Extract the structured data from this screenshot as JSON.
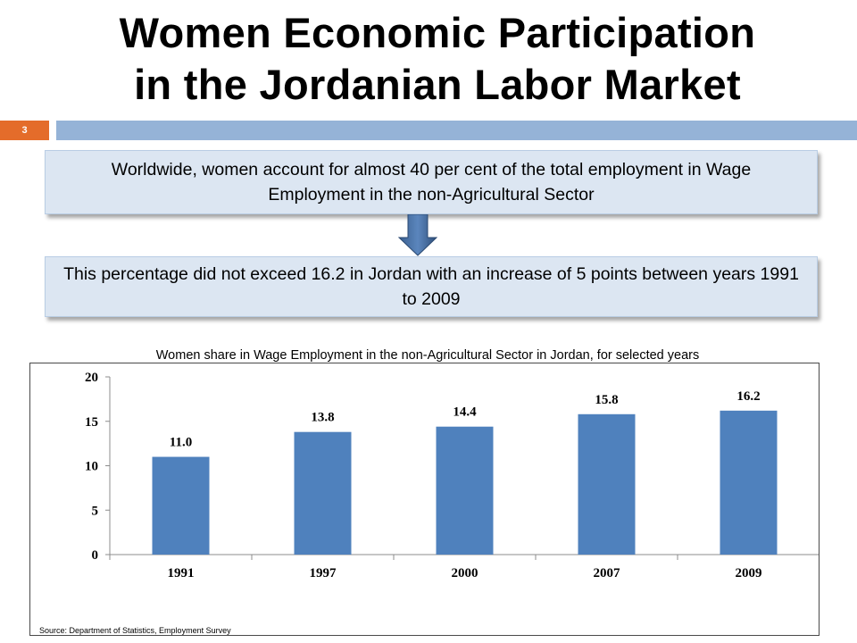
{
  "slide": {
    "title_line1": "Women Economic Participation",
    "title_line2": "in the Jordanian Labor Market",
    "number": "3",
    "callout1": "Worldwide, women account for almost 40 per cent of the total employment in Wage Employment in the non-Agricultural Sector",
    "callout2": "This percentage did not exceed 16.2  in Jordan with an increase of 5 points between years 1991 to 2009",
    "source": "Source: Department of Statistics, Employment Survey"
  },
  "colors": {
    "accent_orange": "#e46c2a",
    "bar_blue": "#4f81bd",
    "header_bar": "#95b3d7",
    "callout_fill": "#dce6f2"
  },
  "chart_data": {
    "type": "bar",
    "title": "Women share in Wage Employment in the non-Agricultural Sector in Jordan, for selected years",
    "categories": [
      "1991",
      "1997",
      "2000",
      "2007",
      "2009"
    ],
    "values": [
      11.0,
      13.8,
      14.4,
      15.8,
      16.2
    ],
    "value_labels": [
      "11.0",
      "13.8",
      "14.4",
      "15.8",
      "16.2"
    ],
    "yticks": [
      "0",
      "5",
      "10",
      "15",
      "20"
    ],
    "ylim": [
      0,
      20
    ],
    "xlabel": "",
    "ylabel": "",
    "grid": false
  }
}
